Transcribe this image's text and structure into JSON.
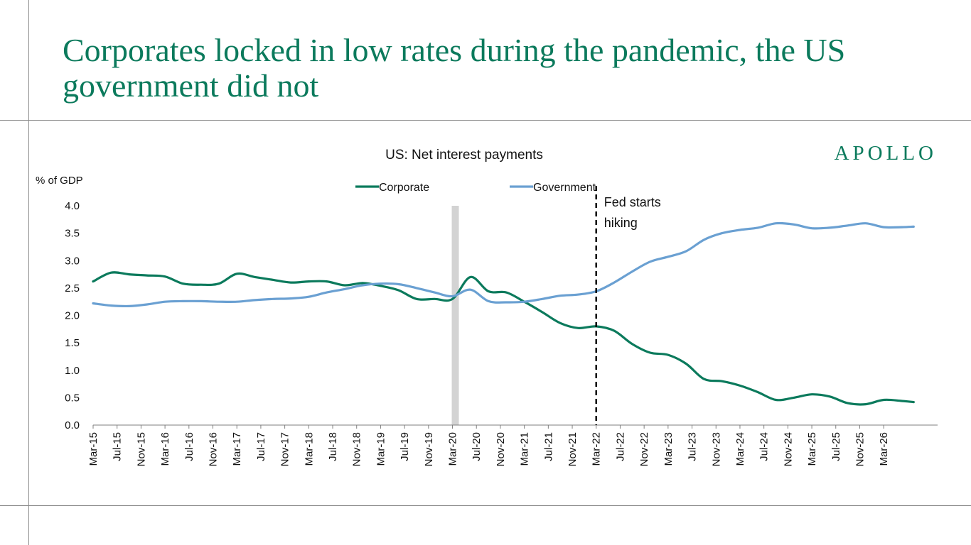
{
  "headline": "Corporates locked in low rates during the pandemic, the US government did not",
  "brand": "APOLLO",
  "chart_data": {
    "type": "line",
    "title": "US: Net interest payments",
    "ylabel": "% of GDP",
    "xlabel": "",
    "ylim": [
      0,
      4.0
    ],
    "yticks": [
      "0.0",
      "0.5",
      "1.0",
      "1.5",
      "2.0",
      "2.5",
      "3.0",
      "3.5",
      "4.0"
    ],
    "xticks": [
      "Mar-15",
      "Jul-15",
      "Nov-15",
      "Mar-16",
      "Jul-16",
      "Nov-16",
      "Mar-17",
      "Jul-17",
      "Nov-17",
      "Mar-18",
      "Jul-18",
      "Nov-18",
      "Mar-19",
      "Jul-19",
      "Nov-19",
      "Mar-20",
      "Jul-20",
      "Nov-20",
      "Mar-21",
      "Jul-21",
      "Nov-21",
      "Mar-22",
      "Jul-22",
      "Nov-22",
      "Mar-23",
      "Jul-23",
      "Nov-23",
      "Mar-24",
      "Jul-24",
      "Nov-24",
      "Mar-25",
      "Jul-25",
      "Nov-25",
      "Mar-26"
    ],
    "x_start": "Mar-15",
    "x_end": "Dec-26",
    "legend_position": "top",
    "grid": false,
    "series": [
      {
        "name": "Corporate",
        "color": "#0b7a5c",
        "points": [
          [
            "Mar-15",
            2.62
          ],
          [
            "Jun-15",
            2.78
          ],
          [
            "Sep-15",
            2.75
          ],
          [
            "Dec-15",
            2.73
          ],
          [
            "Mar-16",
            2.71
          ],
          [
            "Jun-16",
            2.58
          ],
          [
            "Sep-16",
            2.56
          ],
          [
            "Dec-16",
            2.58
          ],
          [
            "Mar-17",
            2.76
          ],
          [
            "Jun-17",
            2.7
          ],
          [
            "Sep-17",
            2.65
          ],
          [
            "Dec-17",
            2.6
          ],
          [
            "Mar-18",
            2.62
          ],
          [
            "Jun-18",
            2.62
          ],
          [
            "Sep-18",
            2.55
          ],
          [
            "Dec-18",
            2.59
          ],
          [
            "Mar-19",
            2.54
          ],
          [
            "Jun-19",
            2.46
          ],
          [
            "Sep-19",
            2.3
          ],
          [
            "Dec-19",
            2.3
          ],
          [
            "Mar-20",
            2.3
          ],
          [
            "Jun-20",
            2.7
          ],
          [
            "Sep-20",
            2.44
          ],
          [
            "Dec-20",
            2.42
          ],
          [
            "Mar-21",
            2.25
          ],
          [
            "Jun-21",
            2.06
          ],
          [
            "Sep-21",
            1.86
          ],
          [
            "Dec-21",
            1.77
          ],
          [
            "Mar-22",
            1.8
          ],
          [
            "Jun-22",
            1.72
          ],
          [
            "Sep-22",
            1.48
          ],
          [
            "Dec-22",
            1.32
          ],
          [
            "Mar-23",
            1.28
          ],
          [
            "Jun-23",
            1.12
          ],
          [
            "Sep-23",
            0.84
          ],
          [
            "Dec-23",
            0.8
          ],
          [
            "Mar-24",
            0.72
          ],
          [
            "Jun-24",
            0.6
          ],
          [
            "Sep-24",
            0.46
          ],
          [
            "Dec-24",
            0.5
          ],
          [
            "Mar-25",
            0.56
          ],
          [
            "Jun-25",
            0.52
          ],
          [
            "Sep-25",
            0.4
          ],
          [
            "Dec-25",
            0.38
          ],
          [
            "Mar-26",
            0.46
          ],
          [
            "Jun-26",
            0.44
          ],
          [
            "Aug-26",
            0.42
          ]
        ]
      },
      {
        "name": "Government",
        "color": "#6aa0d2",
        "points": [
          [
            "Mar-15",
            2.22
          ],
          [
            "Jun-15",
            2.18
          ],
          [
            "Sep-15",
            2.17
          ],
          [
            "Dec-15",
            2.2
          ],
          [
            "Mar-16",
            2.25
          ],
          [
            "Jun-16",
            2.26
          ],
          [
            "Sep-16",
            2.26
          ],
          [
            "Dec-16",
            2.25
          ],
          [
            "Mar-17",
            2.25
          ],
          [
            "Jun-17",
            2.28
          ],
          [
            "Sep-17",
            2.3
          ],
          [
            "Dec-17",
            2.31
          ],
          [
            "Mar-18",
            2.34
          ],
          [
            "Jun-18",
            2.42
          ],
          [
            "Sep-18",
            2.48
          ],
          [
            "Dec-18",
            2.55
          ],
          [
            "Mar-19",
            2.58
          ],
          [
            "Jun-19",
            2.57
          ],
          [
            "Sep-19",
            2.5
          ],
          [
            "Dec-19",
            2.42
          ],
          [
            "Mar-20",
            2.35
          ],
          [
            "Jun-20",
            2.47
          ],
          [
            "Sep-20",
            2.26
          ],
          [
            "Dec-20",
            2.24
          ],
          [
            "Mar-21",
            2.25
          ],
          [
            "Jun-21",
            2.3
          ],
          [
            "Sep-21",
            2.36
          ],
          [
            "Dec-21",
            2.38
          ],
          [
            "Mar-22",
            2.44
          ],
          [
            "Jun-22",
            2.6
          ],
          [
            "Sep-22",
            2.8
          ],
          [
            "Dec-22",
            2.98
          ],
          [
            "Mar-23",
            3.07
          ],
          [
            "Jun-23",
            3.17
          ],
          [
            "Sep-23",
            3.38
          ],
          [
            "Dec-23",
            3.5
          ],
          [
            "Mar-24",
            3.56
          ],
          [
            "Jun-24",
            3.6
          ],
          [
            "Sep-24",
            3.68
          ],
          [
            "Dec-24",
            3.66
          ],
          [
            "Mar-25",
            3.59
          ],
          [
            "Jun-25",
            3.6
          ],
          [
            "Sep-25",
            3.64
          ],
          [
            "Dec-25",
            3.68
          ],
          [
            "Mar-26",
            3.61
          ],
          [
            "Jun-26",
            3.61
          ],
          [
            "Aug-26",
            3.62
          ]
        ]
      }
    ],
    "recession_band": {
      "start": "Mar-20",
      "end": "Apr-20",
      "color": "#d3d3d3"
    },
    "vertical_markers": [
      {
        "x": "Mar-22",
        "label_lines": [
          "Fed starts",
          "hiking"
        ],
        "style": "dashed",
        "color": "#000000"
      }
    ]
  }
}
